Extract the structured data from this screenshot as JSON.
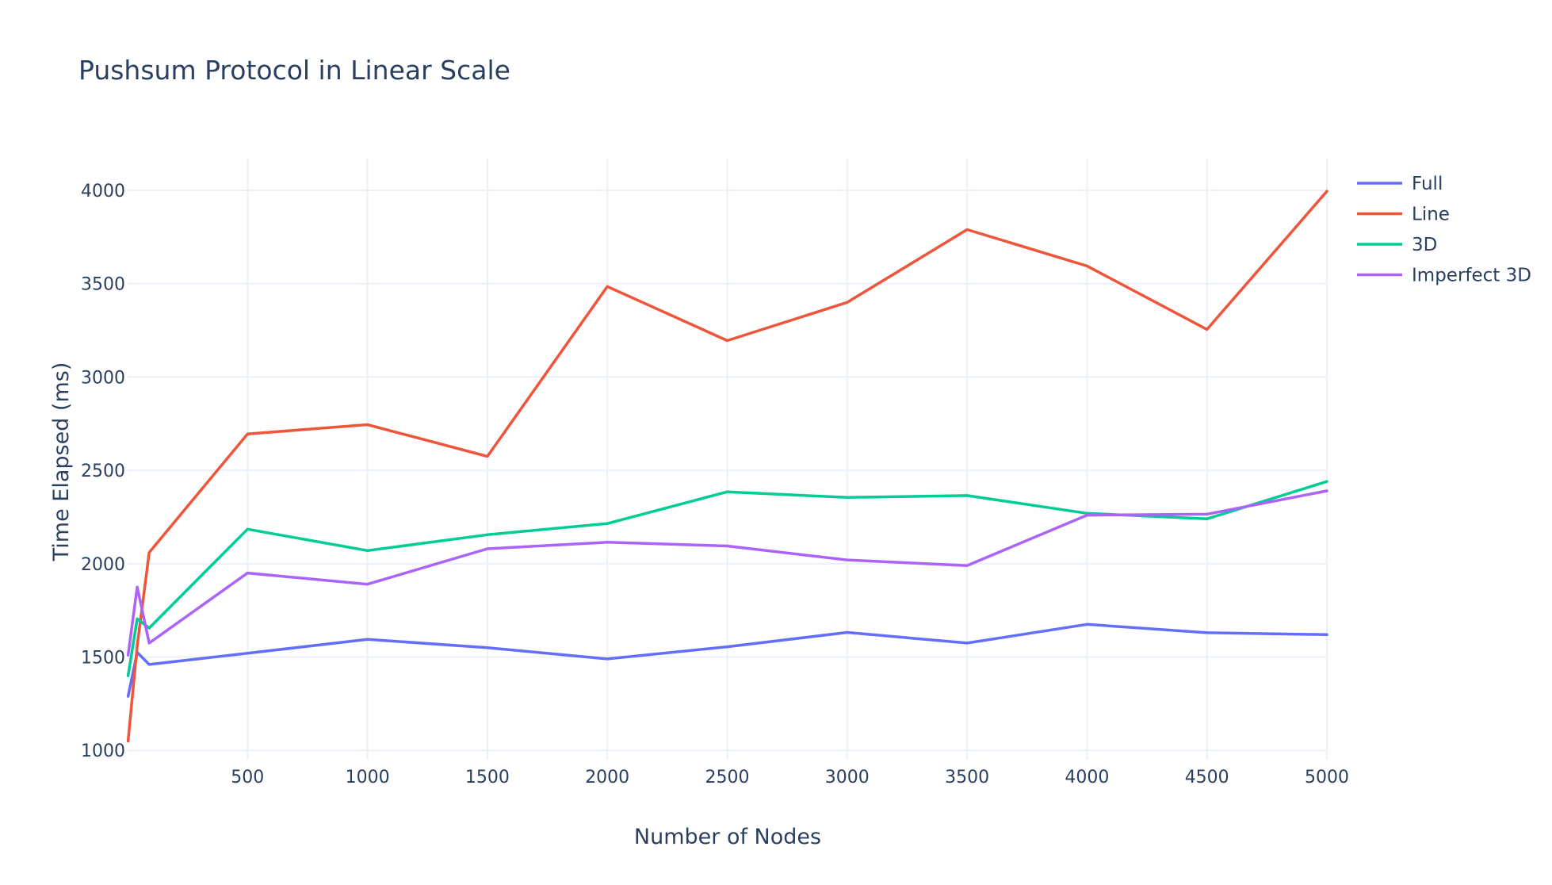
{
  "chart_data": {
    "type": "line",
    "title": "Pushsum Protocol in Linear Scale",
    "xlabel": "Number of Nodes",
    "ylabel": "Time Elapsed (ms)",
    "xlim": [
      0,
      5000
    ],
    "ylim": [
      950,
      4170
    ],
    "xticks": [
      500,
      1000,
      1500,
      2000,
      2500,
      3000,
      3500,
      4000,
      4500,
      5000
    ],
    "yticks": [
      1000,
      1500,
      2000,
      2500,
      3000,
      3500,
      4000
    ],
    "grid": true,
    "legend_position": "top-right",
    "x": [
      2,
      40,
      90,
      500,
      1000,
      1500,
      2000,
      2500,
      3000,
      3500,
      4000,
      4500,
      5000
    ],
    "series": [
      {
        "name": "Full",
        "color": "#636efa",
        "values": [
          1290,
          1525,
          1460,
          1520,
          1595,
          1550,
          1490,
          1555,
          1632,
          1575,
          1675,
          1630,
          1620
        ]
      },
      {
        "name": "Line",
        "color": "#ef553b",
        "values": [
          1050,
          1560,
          2060,
          2695,
          2745,
          2575,
          3485,
          3195,
          3400,
          3790,
          3595,
          3255,
          3995
        ]
      },
      {
        "name": "3D",
        "color": "#00cc96",
        "values": [
          1400,
          1705,
          1655,
          2185,
          2070,
          2155,
          2215,
          2385,
          2355,
          2365,
          2270,
          2240,
          2440
        ]
      },
      {
        "name": "Imperfect 3D",
        "color": "#ab63fa",
        "values": [
          1510,
          1875,
          1575,
          1950,
          1890,
          2080,
          2115,
          2095,
          2020,
          1990,
          2260,
          2265,
          2390
        ]
      }
    ]
  }
}
